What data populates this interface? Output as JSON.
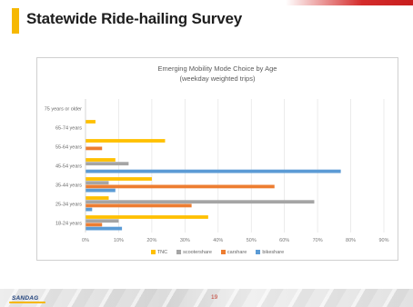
{
  "slide": {
    "title": "Statewide Ride-hailing Survey",
    "page_number": "19",
    "logo_text": "SANDAG"
  },
  "colors": {
    "title_accent": "#f6b800",
    "top_accent": "#d42b2b",
    "TNC": "#ffc000",
    "scootershare": "#a5a5a5",
    "carshare": "#ed7d31",
    "bikeshare": "#5b9bd5"
  },
  "chart_data": {
    "type": "bar",
    "orientation": "horizontal",
    "title": "Emerging Mobility Mode Choice by Age",
    "subtitle": "(weekday weighted trips)",
    "categories": [
      "75 years or older",
      "65-74 years",
      "55-64 years",
      "45-54 years",
      "35-44 years",
      "25-34 years",
      "18-24 years"
    ],
    "x_ticks": [
      "0%",
      "10%",
      "20%",
      "30%",
      "40%",
      "50%",
      "60%",
      "70%",
      "80%",
      "90%"
    ],
    "xlim": [
      0,
      90
    ],
    "grid": true,
    "legend_position": "bottom",
    "series": [
      {
        "name": "TNC",
        "color": "#ffc000",
        "values": [
          0,
          3,
          24,
          9,
          20,
          7,
          37
        ]
      },
      {
        "name": "scootershare",
        "color": "#a5a5a5",
        "values": [
          0,
          0,
          0,
          13,
          7,
          69,
          10
        ]
      },
      {
        "name": "carshare",
        "color": "#ed7d31",
        "values": [
          0,
          0,
          5,
          0,
          57,
          32,
          5
        ]
      },
      {
        "name": "bikeshare",
        "color": "#5b9bd5",
        "values": [
          0,
          0,
          0,
          77,
          9,
          2,
          11
        ]
      }
    ]
  }
}
